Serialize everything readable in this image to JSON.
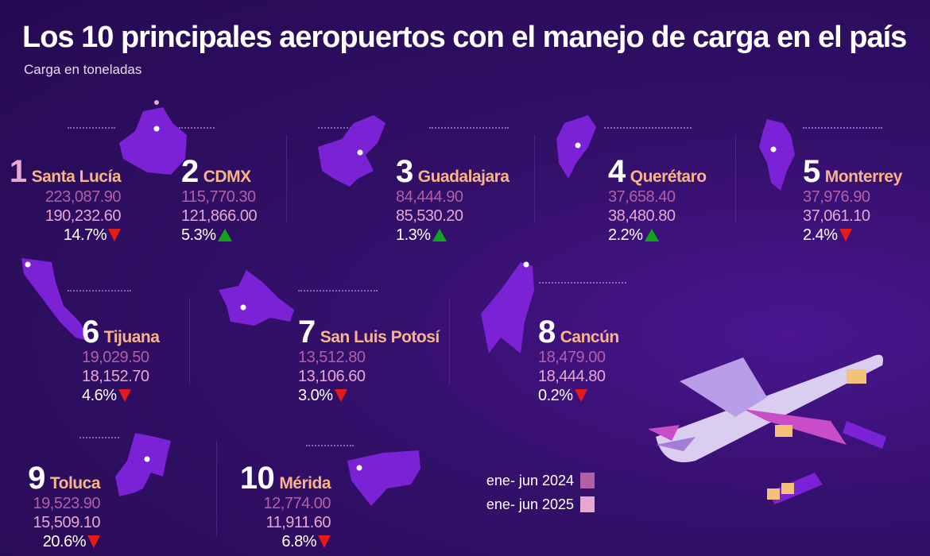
{
  "header": {
    "title": "Los 10 principales aeropuertos con el manejo de carga en el país",
    "subtitle": "Carga  en toneladas"
  },
  "colors": {
    "v2024": "#b35fa6",
    "v2025": "#e8a7d0",
    "down": "#e41b1b",
    "up": "#12a41a",
    "map": "#7b22d6"
  },
  "airports": [
    {
      "rank": "1",
      "name": "Santa Lucía",
      "v2024": "223,087.90",
      "v2025": "190,232.60",
      "change": "14.7%",
      "trend": "down"
    },
    {
      "rank": "2",
      "name": "CDMX",
      "v2024": "115,770.30",
      "v2025": "121,866.00",
      "change": "5.3%",
      "trend": "up"
    },
    {
      "rank": "3",
      "name": "Guadalajara",
      "v2024": "84,444.90",
      "v2025": "85,530.20",
      "change": "1.3%",
      "trend": "up"
    },
    {
      "rank": "4",
      "name": "Querétaro",
      "v2024": "37,658.40",
      "v2025": "38,480.80",
      "change": "2.2%",
      "trend": "up"
    },
    {
      "rank": "5",
      "name": "Monterrey",
      "v2024": "37,976.90",
      "v2025": "37,061.10",
      "change": "2.4%",
      "trend": "down"
    },
    {
      "rank": "6",
      "name": "Tijuana",
      "v2024": "19,029.50",
      "v2025": "18,152.70",
      "change": "4.6%",
      "trend": "down"
    },
    {
      "rank": "7",
      "name": "San Luis Potosí",
      "v2024": "13,512.80",
      "v2025": "13,106.60",
      "change": "3.0%",
      "trend": "down"
    },
    {
      "rank": "8",
      "name": "Cancún",
      "v2024": "18,479.00",
      "v2025": "18,444.80",
      "change": "0.2%",
      "trend": "down"
    },
    {
      "rank": "9",
      "name": "Toluca",
      "v2024": "19,523.90",
      "v2025": "15,509.10",
      "change": "20.6%",
      "trend": "down"
    },
    {
      "rank": "10",
      "name": "Mérida",
      "v2024": "12,774.00",
      "v2025": "11,911.60",
      "change": "6.8%",
      "trend": "down"
    }
  ],
  "legend": [
    {
      "label": "ene- jun 2024"
    },
    {
      "label": "ene- jun 2025"
    }
  ]
}
